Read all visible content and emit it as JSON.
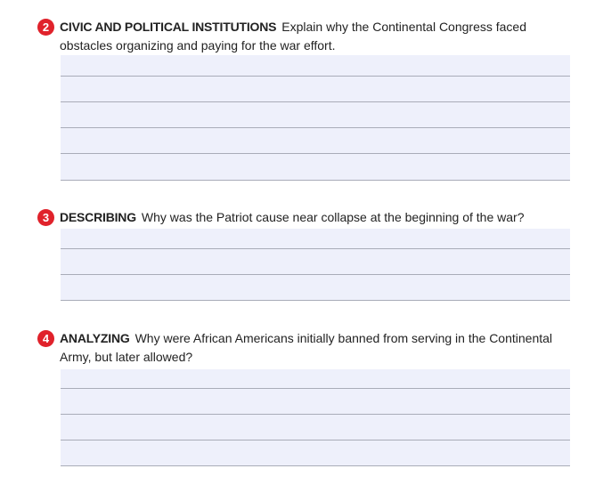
{
  "questions": [
    {
      "number": "2",
      "label": "CIVIC AND POLITICAL INSTITUTIONS",
      "prompt": "Explain why the Continental Congress faced obstacles organizing and paying for the war effort.",
      "answer_lines": 5
    },
    {
      "number": "3",
      "label": "DESCRIBING",
      "prompt": "Why was the Patriot cause near collapse at the beginning of the war?",
      "answer_lines": 3
    },
    {
      "number": "4",
      "label": "ANALYZING",
      "prompt": "Why were African Americans initially banned from serving in the Continental Army, but later allowed?",
      "answer_lines": 4
    }
  ],
  "colors": {
    "badge": "#e0222b",
    "field": "#eef0fb",
    "rule": "#a9acb8"
  }
}
